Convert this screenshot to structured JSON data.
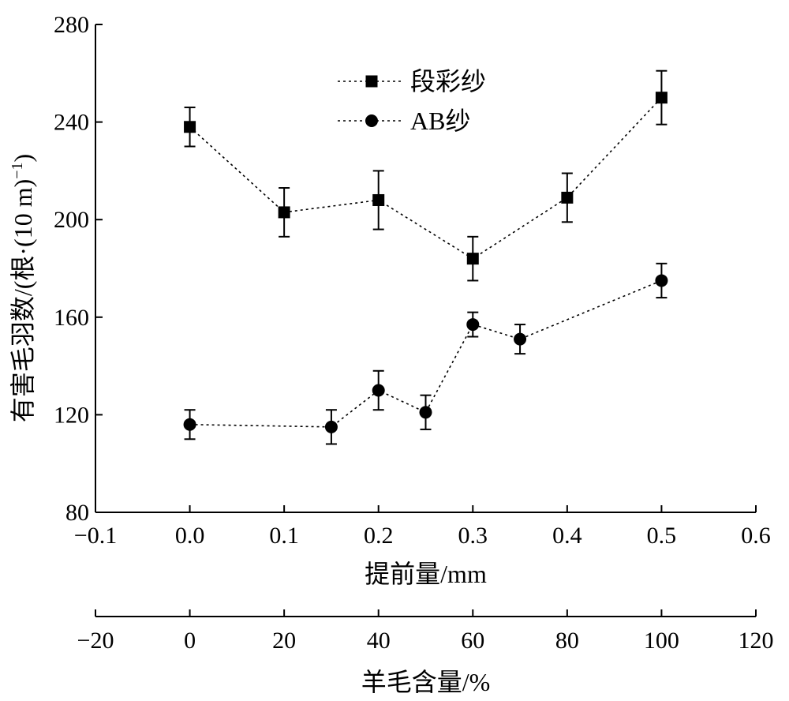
{
  "chart_data": {
    "type": "scatter",
    "y_axis": {
      "label": "有害毛羽数/(根·(10 m)",
      "label_sup": "−1",
      "label_close": ")",
      "ylim": [
        80,
        280
      ],
      "ticks": [
        80,
        120,
        160,
        200,
        240,
        280
      ],
      "tick_labels": [
        "80",
        "120",
        "160",
        "200",
        "240",
        "280"
      ]
    },
    "x_axis_top": {
      "label": "提前量/mm",
      "xlim": [
        -0.1,
        0.6
      ],
      "ticks": [
        -0.1,
        0,
        0.1,
        0.2,
        0.3,
        0.4,
        0.5,
        0.6
      ],
      "tick_labels": [
        "−0.1",
        "0.0",
        "0.1",
        "0.2",
        "0.3",
        "0.4",
        "0.5",
        "0.6"
      ]
    },
    "x_axis_bottom": {
      "label": "羊毛含量/%",
      "xlim": [
        -20,
        120
      ],
      "ticks": [
        -20,
        0,
        20,
        40,
        60,
        80,
        100,
        120
      ],
      "tick_labels": [
        "−20",
        "0",
        "20",
        "40",
        "60",
        "80",
        "100",
        "120"
      ]
    },
    "legend": {
      "position": "top-center"
    },
    "series": [
      {
        "name": "段彩纱",
        "marker": "square",
        "x": [
          0.0,
          0.1,
          0.2,
          0.3,
          0.4,
          0.5
        ],
        "y": [
          238,
          203,
          208,
          184,
          209,
          250
        ],
        "err": [
          8,
          10,
          12,
          9,
          10,
          11
        ]
      },
      {
        "name": "AB纱",
        "marker": "circle",
        "x": [
          0.0,
          0.15,
          0.2,
          0.25,
          0.3,
          0.35,
          0.5
        ],
        "y": [
          116,
          115,
          130,
          121,
          157,
          151,
          175
        ],
        "err": [
          6,
          7,
          8,
          7,
          5,
          6,
          7
        ]
      }
    ]
  }
}
